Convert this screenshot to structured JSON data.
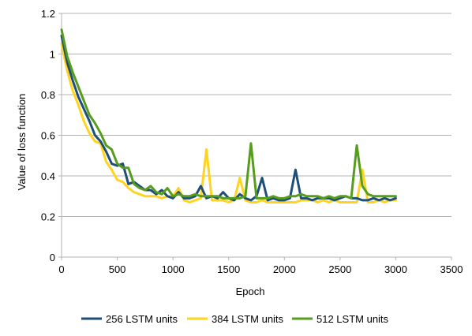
{
  "chart_data": {
    "type": "line",
    "title": "",
    "xlabel": "Epoch",
    "ylabel": "Value of loss function",
    "xlim": [
      0,
      3500
    ],
    "ylim": [
      0,
      1.2
    ],
    "x_ticks": [
      "0",
      "500",
      "1000",
      "1500",
      "2000",
      "2500",
      "3000",
      "3500"
    ],
    "y_ticks": [
      "0",
      "0.2",
      "0.4",
      "0.6",
      "0.8",
      "1",
      "1.2"
    ],
    "x_tick_values": [
      0,
      500,
      1000,
      1500,
      2000,
      2500,
      3000,
      3500
    ],
    "y_tick_values": [
      0,
      0.2,
      0.4,
      0.6,
      0.8,
      1.0,
      1.2
    ],
    "grid": "horizontal",
    "legend_position": "bottom",
    "x": [
      0,
      50,
      100,
      150,
      200,
      250,
      300,
      350,
      400,
      450,
      500,
      550,
      600,
      650,
      700,
      750,
      800,
      850,
      900,
      950,
      1000,
      1050,
      1100,
      1150,
      1200,
      1250,
      1300,
      1350,
      1400,
      1450,
      1500,
      1550,
      1600,
      1650,
      1700,
      1750,
      1800,
      1850,
      1900,
      1950,
      2000,
      2050,
      2100,
      2150,
      2200,
      2250,
      2300,
      2350,
      2400,
      2450,
      2500,
      2550,
      2600,
      2650,
      2700,
      2750,
      2800,
      2850,
      2900,
      2950,
      3000
    ],
    "series": [
      {
        "name": "256 LSTM units",
        "color": "#1f4e79",
        "values": [
          1.09,
          0.96,
          0.87,
          0.79,
          0.73,
          0.67,
          0.6,
          0.57,
          0.52,
          0.46,
          0.45,
          0.46,
          0.36,
          0.37,
          0.35,
          0.33,
          0.33,
          0.31,
          0.33,
          0.3,
          0.29,
          0.32,
          0.29,
          0.29,
          0.3,
          0.35,
          0.29,
          0.3,
          0.29,
          0.32,
          0.29,
          0.28,
          0.31,
          0.29,
          0.28,
          0.3,
          0.39,
          0.28,
          0.29,
          0.28,
          0.28,
          0.29,
          0.43,
          0.29,
          0.29,
          0.28,
          0.29,
          0.29,
          0.29,
          0.28,
          0.29,
          0.3,
          0.29,
          0.29,
          0.28,
          0.28,
          0.29,
          0.28,
          0.29,
          0.28,
          0.29
        ]
      },
      {
        "name": "384 LSTM units",
        "color": "#ffd320",
        "values": [
          1.05,
          0.92,
          0.82,
          0.75,
          0.67,
          0.61,
          0.57,
          0.56,
          0.47,
          0.43,
          0.38,
          0.37,
          0.34,
          0.32,
          0.31,
          0.3,
          0.3,
          0.3,
          0.29,
          0.3,
          0.3,
          0.34,
          0.28,
          0.27,
          0.28,
          0.29,
          0.53,
          0.28,
          0.28,
          0.28,
          0.27,
          0.28,
          0.39,
          0.28,
          0.27,
          0.27,
          0.28,
          0.27,
          0.27,
          0.27,
          0.27,
          0.27,
          0.27,
          0.28,
          0.28,
          0.28,
          0.27,
          0.28,
          0.27,
          0.28,
          0.27,
          0.27,
          0.27,
          0.27,
          0.43,
          0.27,
          0.27,
          0.28,
          0.27,
          0.28,
          0.28
        ]
      },
      {
        "name": "512 LSTM units",
        "color": "#579d1c",
        "values": [
          1.12,
          0.99,
          0.91,
          0.84,
          0.77,
          0.7,
          0.66,
          0.61,
          0.55,
          0.53,
          0.46,
          0.44,
          0.44,
          0.36,
          0.34,
          0.33,
          0.35,
          0.32,
          0.31,
          0.34,
          0.3,
          0.31,
          0.3,
          0.3,
          0.31,
          0.3,
          0.3,
          0.3,
          0.3,
          0.29,
          0.29,
          0.29,
          0.29,
          0.3,
          0.56,
          0.29,
          0.29,
          0.29,
          0.3,
          0.29,
          0.29,
          0.3,
          0.3,
          0.31,
          0.3,
          0.3,
          0.3,
          0.29,
          0.3,
          0.29,
          0.3,
          0.3,
          0.29,
          0.55,
          0.35,
          0.31,
          0.3,
          0.3,
          0.3,
          0.3,
          0.3
        ]
      }
    ]
  }
}
